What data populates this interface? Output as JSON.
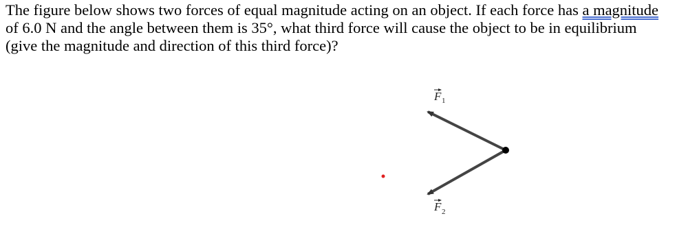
{
  "question": {
    "before": "The figure below shows two forces of equal magnitude acting on an object. If each force has ",
    "underlined": "a magnitude",
    "after": " of 6.0 N and the angle between them is 35°, what third force will cause the object to be in equilibrium (give the magnitude and direction of this third force)?"
  },
  "figure": {
    "f1": {
      "symbol": "F",
      "subscript": "1"
    },
    "f2": {
      "symbol": "F",
      "subscript": "2"
    }
  }
}
